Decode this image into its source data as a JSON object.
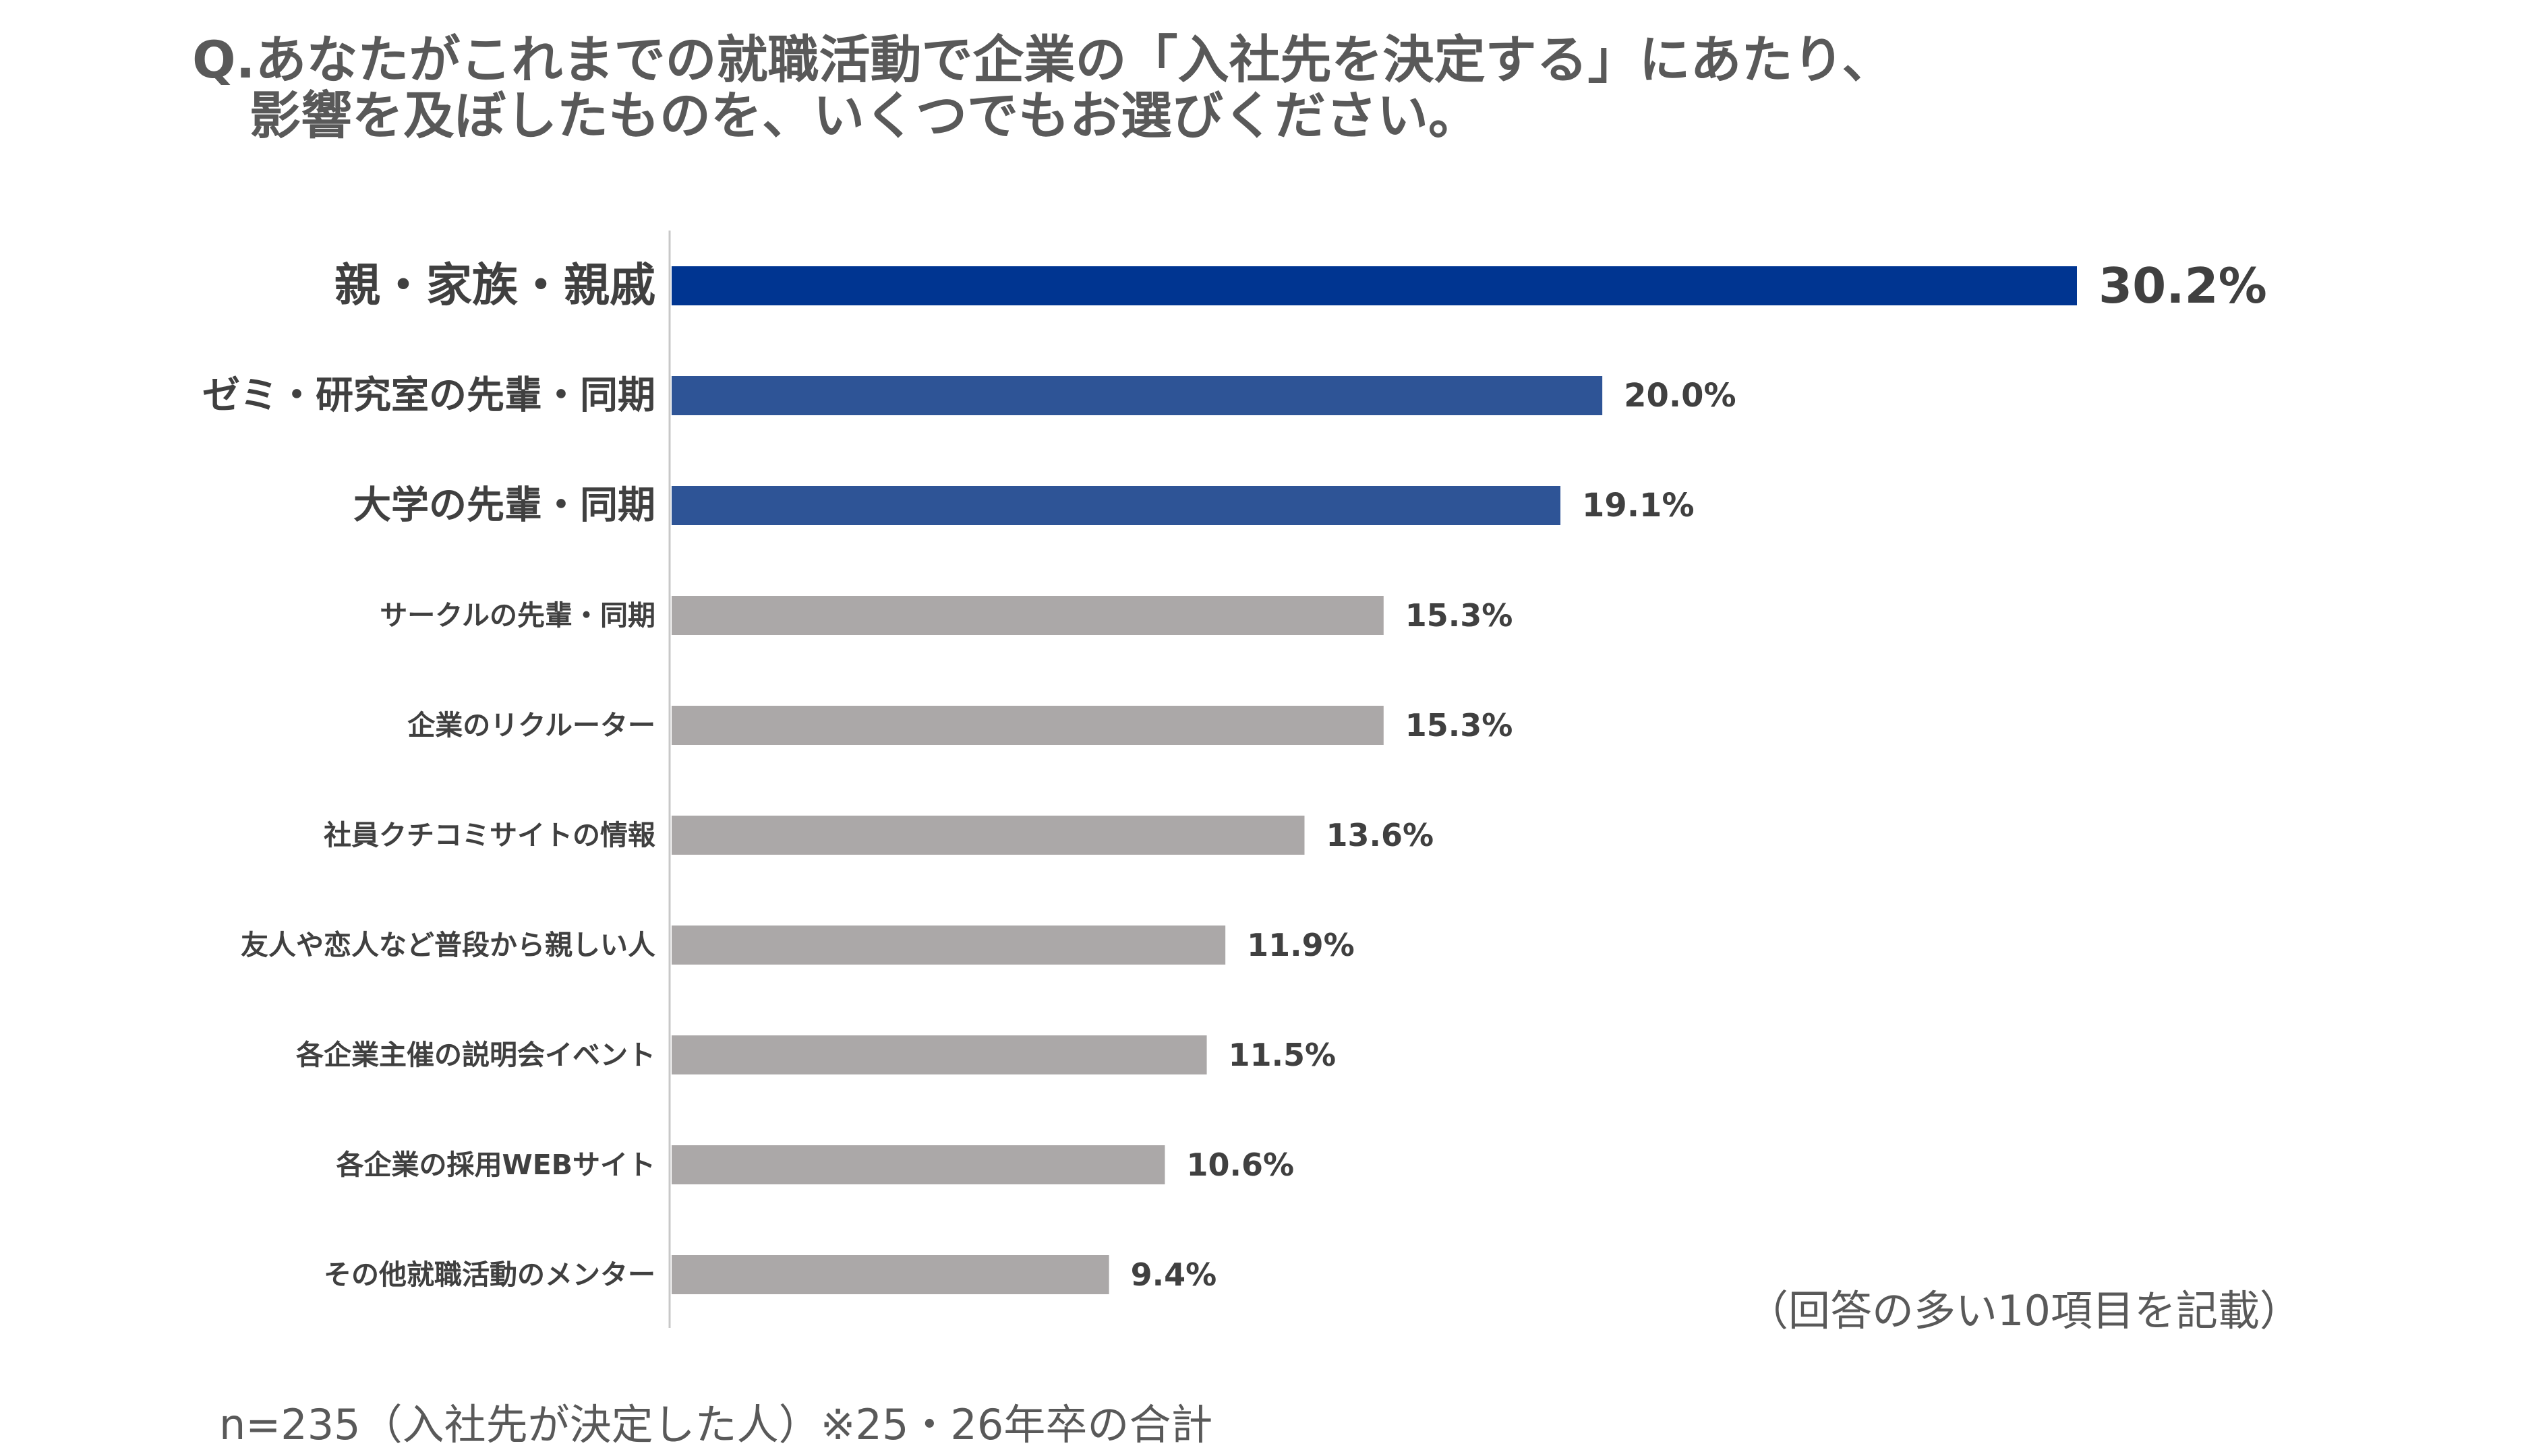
{
  "title_line1": "Q.あなたがこれまでの就職活動で企業の「入社先を決定する」にあたり、",
  "title_line2": "影響を及ぼしたものを、いくつでもお選びください。",
  "note": "（回答の多い10項目を記載）",
  "footnote": "n=235（入社先が決定した人）※25・26年卒の合計",
  "colors": {
    "top": "#003591",
    "highlight": "#2E5496",
    "other": "#ABA8A8",
    "axis": "#C8C8C8",
    "text": "#404040"
  },
  "chart_data": {
    "type": "bar",
    "orientation": "horizontal",
    "categories": [
      "親・家族・親戚",
      "ゼミ・研究室の先輩・同期",
      "大学の先輩・同期",
      "サークルの先輩・同期",
      "企業のリクルーター",
      "社員クチコミサイトの情報",
      "友人や恋人など普段から親しい人",
      "各企業主催の説明会イベント",
      "各企業の採用WEBサイト",
      "その他就職活動のメンター"
    ],
    "values": [
      30.2,
      20.0,
      19.1,
      15.3,
      15.3,
      13.6,
      11.9,
      11.5,
      10.6,
      9.4
    ],
    "value_labels": [
      "30.2%",
      "20.0%",
      "19.1%",
      "15.3%",
      "15.3%",
      "13.6%",
      "11.9%",
      "11.5%",
      "10.6%",
      "9.4%"
    ],
    "color_groups": [
      "top",
      "highlight",
      "highlight",
      "other",
      "other",
      "other",
      "other",
      "other",
      "other",
      "other"
    ],
    "xlim": [
      0,
      30.2
    ],
    "grid": false,
    "legend": "none"
  }
}
